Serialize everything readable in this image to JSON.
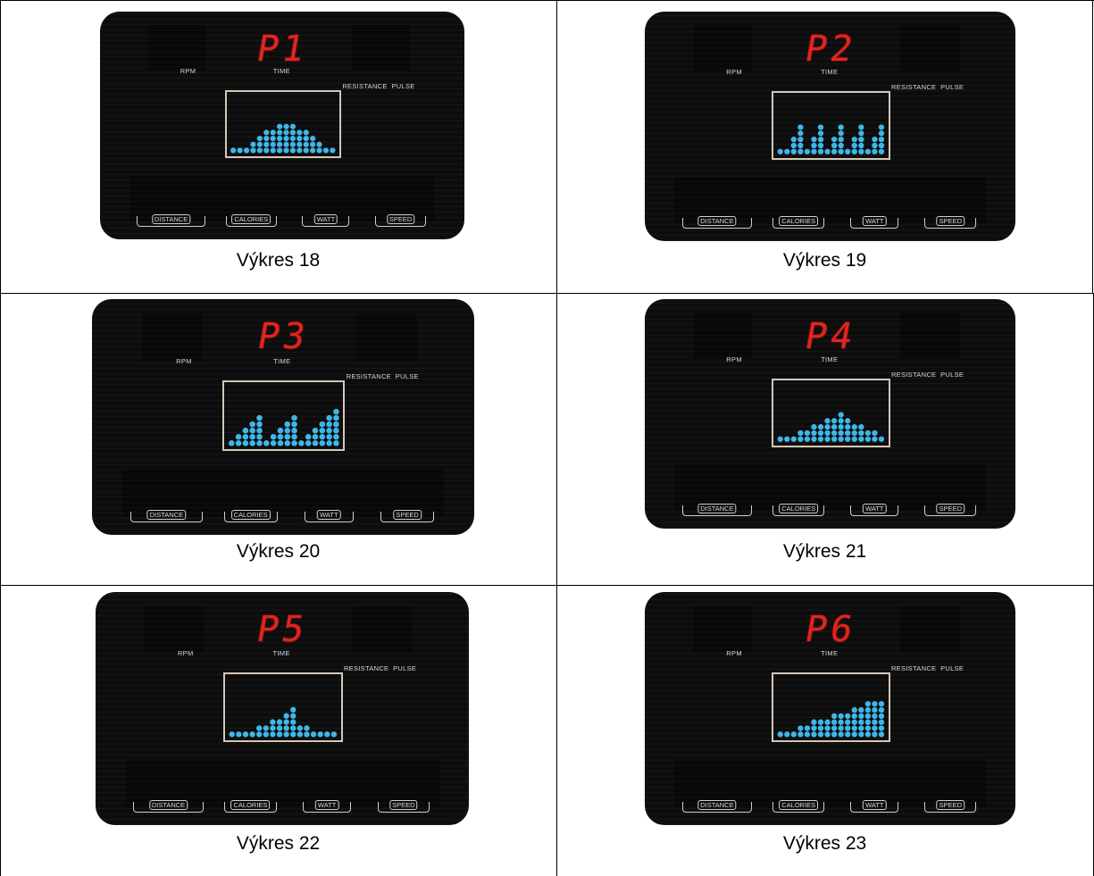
{
  "labels": {
    "rpm": "RPM",
    "time": "TIME",
    "resistance_pulse": "RESISTANCE  PULSE",
    "distance": "DISTANCE",
    "calories": "CALORIES",
    "watt": "WATT",
    "speed": "SPEED"
  },
  "colors": {
    "led_red": "#e2241e",
    "dot_blue": "#3fb6e8",
    "frame": "#d5c6b8"
  },
  "panels": [
    {
      "program": "P1",
      "caption": "Výkres 18",
      "profile": [
        1,
        1,
        1,
        2,
        3,
        4,
        4,
        5,
        5,
        5,
        4,
        4,
        3,
        2,
        1,
        1
      ]
    },
    {
      "program": "P2",
      "caption": "Výkres 19",
      "profile": [
        1,
        1,
        3,
        5,
        1,
        3,
        5,
        1,
        3,
        5,
        1,
        3,
        5,
        1,
        3,
        5
      ]
    },
    {
      "program": "P3",
      "caption": "Výkres 20",
      "profile": [
        1,
        2,
        3,
        4,
        5,
        1,
        2,
        3,
        4,
        5,
        1,
        2,
        3,
        4,
        5,
        6
      ]
    },
    {
      "program": "P4",
      "caption": "Výkres 21",
      "profile": [
        1,
        1,
        1,
        2,
        2,
        3,
        3,
        4,
        4,
        5,
        4,
        3,
        3,
        2,
        2,
        1
      ]
    },
    {
      "program": "P5",
      "caption": "Výkres 22",
      "profile": [
        1,
        1,
        1,
        1,
        2,
        2,
        3,
        3,
        4,
        5,
        2,
        2,
        1,
        1,
        1,
        1
      ]
    },
    {
      "program": "P6",
      "caption": "Výkres 23",
      "profile": [
        1,
        1,
        1,
        2,
        2,
        3,
        3,
        3,
        4,
        4,
        4,
        5,
        5,
        6,
        6,
        6
      ]
    }
  ]
}
